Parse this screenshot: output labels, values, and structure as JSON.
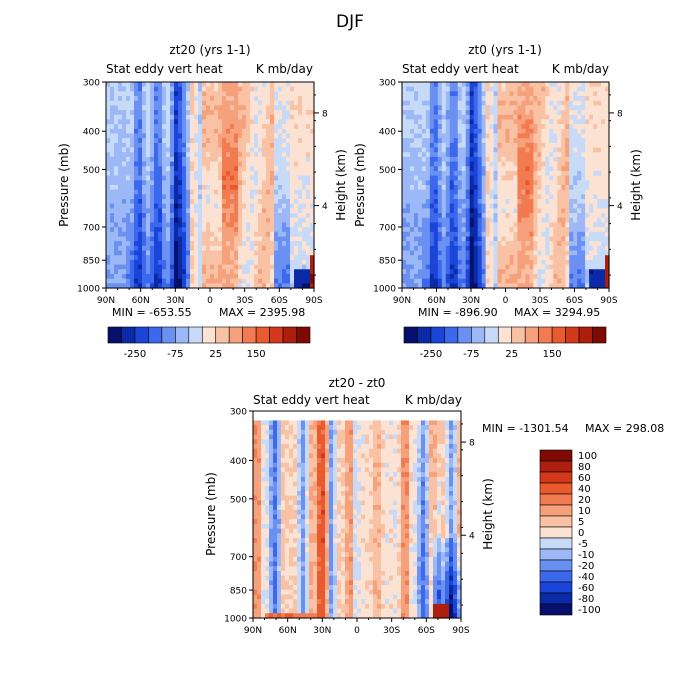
{
  "figure_title": "DJF",
  "chart_data": [
    {
      "type": "heatmap",
      "title": "zt20 (yrs 1-1)",
      "subtitle_left": "Stat eddy vert heat",
      "subtitle_right": "K mb/day",
      "ylabel": "Pressure (mb)",
      "y2label": "Height (km)",
      "x_ticks": [
        "90N",
        "60N",
        "30N",
        "0",
        "30S",
        "60S",
        "90S"
      ],
      "y_ticks": [
        "300",
        "400",
        "500",
        "700",
        "850",
        "1000"
      ],
      "y_tick_values": [
        300,
        400,
        500,
        700,
        850,
        1000
      ],
      "y2_ticks": [
        "8",
        "4"
      ],
      "min_label": "MIN = -653.55",
      "max_label": "MAX = 2395.98",
      "min": -653.55,
      "max": 2395.98,
      "colorbar_ticks": [
        "-250",
        "-75",
        "25",
        "150"
      ]
    },
    {
      "type": "heatmap",
      "title": "zt0 (yrs 1-1)",
      "subtitle_left": "Stat eddy vert heat",
      "subtitle_right": "K mb/day",
      "ylabel": "Pressure (mb)",
      "y2label": "Height (km)",
      "x_ticks": [
        "90N",
        "60N",
        "30N",
        "0",
        "30S",
        "60S",
        "90S"
      ],
      "y_ticks": [
        "300",
        "400",
        "500",
        "700",
        "850",
        "1000"
      ],
      "y_tick_values": [
        300,
        400,
        500,
        700,
        850,
        1000
      ],
      "y2_ticks": [
        "8",
        "4"
      ],
      "min_label": "MIN = -896.90",
      "max_label": "MAX = 3294.95",
      "min": -896.9,
      "max": 3294.95,
      "colorbar_ticks": [
        "-250",
        "-75",
        "25",
        "150"
      ]
    },
    {
      "type": "heatmap",
      "title": "zt20 - zt0",
      "subtitle_left": "Stat eddy vert heat",
      "subtitle_right": "K mb/day",
      "ylabel": "Pressure (mb)",
      "y2label": "Height (km)",
      "x_ticks": [
        "90N",
        "60N",
        "30N",
        "0",
        "30S",
        "60S",
        "90S"
      ],
      "y_ticks": [
        "300",
        "400",
        "500",
        "700",
        "850",
        "1000"
      ],
      "y_tick_values": [
        300,
        400,
        500,
        700,
        850,
        1000
      ],
      "y2_ticks": [
        "8",
        "4"
      ],
      "min_label": "MIN = -1301.54",
      "max_label": "MAX = 298.08",
      "min": -1301.54,
      "max": 298.08,
      "colorbar_levels": [
        "100",
        "80",
        "60",
        "40",
        "20",
        "10",
        "5",
        "0",
        "-5",
        "-10",
        "-20",
        "-40",
        "-60",
        "-80",
        "-100"
      ]
    }
  ],
  "colorbar_colors": [
    "#08106e",
    "#0a2aa8",
    "#1a45d8",
    "#3c68ee",
    "#6a90f2",
    "#9cb8f6",
    "#c7dbf9",
    "#fbe2d2",
    "#f9c2a4",
    "#f6a07c",
    "#f27b52",
    "#e95a2f",
    "#d2381a",
    "#ae1e0c",
    "#7e0a03"
  ],
  "vertical_colorbar_colors": [
    "#7e0a03",
    "#ae1e0c",
    "#d2381a",
    "#e95a2f",
    "#f27b52",
    "#f6a07c",
    "#f9c2a4",
    "#fbe2d2",
    "#c7dbf9",
    "#9cb8f6",
    "#6a90f2",
    "#3c68ee",
    "#1a45d8",
    "#0a2aa8",
    "#08106e"
  ]
}
